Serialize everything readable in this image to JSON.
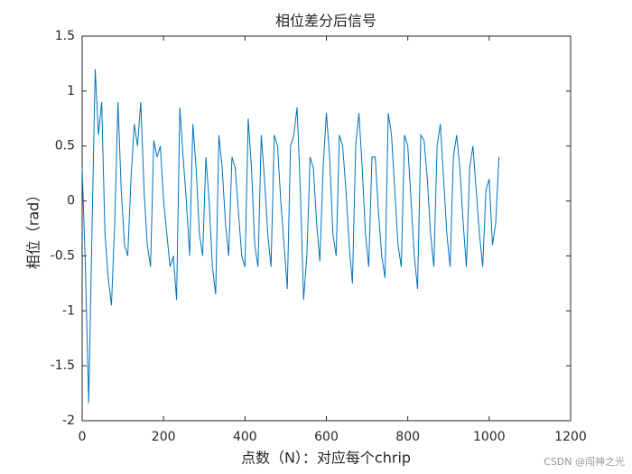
{
  "chart_data": {
    "type": "line",
    "title": "相位差分后信号",
    "x_label": "点数（N）：对应每个chrip",
    "y_label": "相位（rad）",
    "watermark": "CSDN @闯神之光",
    "x": [
      0,
      8,
      16,
      24,
      32,
      40,
      48,
      56,
      64,
      72,
      80,
      88,
      96,
      104,
      112,
      120,
      128,
      136,
      144,
      152,
      160,
      168,
      176,
      184,
      192,
      200,
      208,
      216,
      224,
      232,
      240,
      248,
      256,
      264,
      272,
      280,
      288,
      296,
      304,
      312,
      320,
      328,
      336,
      344,
      352,
      360,
      368,
      376,
      384,
      392,
      400,
      408,
      416,
      424,
      432,
      440,
      448,
      456,
      464,
      472,
      480,
      488,
      496,
      504,
      512,
      520,
      528,
      536,
      544,
      552,
      560,
      568,
      576,
      584,
      592,
      600,
      608,
      616,
      624,
      632,
      640,
      648,
      656,
      664,
      672,
      680,
      688,
      696,
      704,
      712,
      720,
      728,
      736,
      744,
      752,
      760,
      768,
      776,
      784,
      792,
      800,
      808,
      816,
      824,
      832,
      840,
      848,
      856,
      864,
      872,
      880,
      888,
      896,
      904,
      912,
      920,
      928,
      936,
      944,
      952,
      960,
      968,
      976,
      984,
      992,
      1000,
      1008,
      1016,
      1024
    ],
    "series": [
      {
        "color": "#0072bd",
        "values": [
          0.3,
          -0.6,
          -1.84,
          -0.3,
          1.2,
          0.6,
          0.9,
          -0.3,
          -0.7,
          -0.95,
          -0.2,
          0.9,
          0.1,
          -0.4,
          -0.5,
          0.2,
          0.7,
          0.5,
          0.9,
          0.1,
          -0.4,
          -0.6,
          0.55,
          0.4,
          0.5,
          0.0,
          -0.3,
          -0.6,
          -0.5,
          -0.9,
          0.85,
          0.4,
          0.0,
          -0.5,
          0.7,
          0.3,
          -0.3,
          -0.5,
          0.4,
          0.0,
          -0.6,
          -0.85,
          0.6,
          0.3,
          -0.2,
          -0.5,
          0.4,
          0.3,
          -0.1,
          -0.5,
          -0.6,
          0.75,
          0.3,
          -0.4,
          -0.6,
          0.6,
          0.2,
          -0.3,
          -0.6,
          0.6,
          0.5,
          0.0,
          -0.4,
          -0.8,
          0.5,
          0.6,
          0.85,
          0.1,
          -0.9,
          -0.5,
          0.4,
          0.3,
          -0.2,
          -0.55,
          0.3,
          0.8,
          0.4,
          -0.3,
          -0.5,
          0.6,
          0.5,
          0.1,
          -0.4,
          -0.75,
          0.5,
          0.8,
          0.3,
          -0.3,
          -0.6,
          0.4,
          0.4,
          -0.1,
          -0.5,
          -0.7,
          0.8,
          0.6,
          0.1,
          -0.4,
          -0.6,
          0.6,
          0.5,
          0.0,
          -0.5,
          -0.8,
          0.6,
          0.55,
          0.2,
          -0.3,
          -0.6,
          0.5,
          0.7,
          0.2,
          -0.3,
          -0.6,
          0.4,
          0.6,
          0.3,
          -0.2,
          -0.6,
          0.3,
          0.5,
          0.1,
          -0.3,
          -0.6,
          0.1,
          0.2,
          -0.4,
          -0.2,
          0.4
        ]
      }
    ],
    "xlim": [
      0,
      1200
    ],
    "xticks": [
      0,
      200,
      400,
      600,
      800,
      1000,
      1200
    ],
    "ylim": [
      -2,
      1.5
    ],
    "yticks": [
      -2,
      -1.5,
      -1,
      -0.5,
      0,
      0.5,
      1,
      1.5
    ]
  }
}
